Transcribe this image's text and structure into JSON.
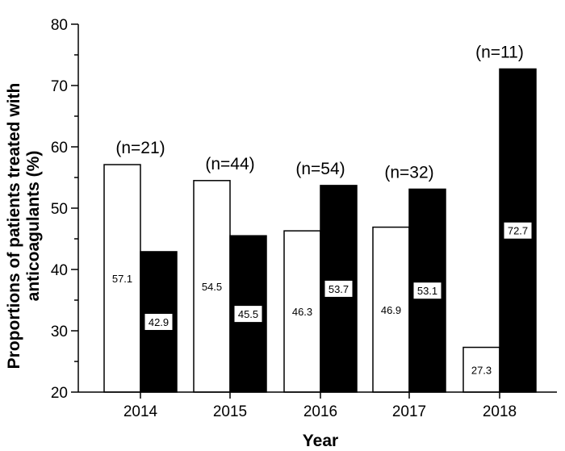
{
  "chart_data": {
    "type": "bar",
    "title": "",
    "xlabel": "Year",
    "ylabel": "Proportions of patients treated with anticoagulants (%)",
    "ylabel_lines": [
      "Proportions of patients treated with",
      "anticoagulants (%)"
    ],
    "ylim": [
      20,
      80
    ],
    "yticks": [
      "20",
      "30",
      "40",
      "50",
      "60",
      "70",
      "80"
    ],
    "categories": [
      "2014",
      "2015",
      "2016",
      "2017",
      "2018"
    ],
    "series": [
      {
        "name": "white",
        "color": "#ffffff",
        "values": [
          57.1,
          54.5,
          46.3,
          46.9,
          27.3
        ]
      },
      {
        "name": "black",
        "color": "#000000",
        "values": [
          42.9,
          45.5,
          53.7,
          53.1,
          72.7
        ]
      }
    ],
    "value_labels": [
      [
        "57.1",
        "54.5",
        "46.3",
        "46.9",
        "27.3"
      ],
      [
        "42.9",
        "45.5",
        "53.7",
        "53.1",
        "72.7"
      ]
    ],
    "n_labels": [
      "(n=21)",
      "(n=44)",
      "(n=54)",
      "(n=32)",
      "(n=11)"
    ],
    "grid": false,
    "legend": "none"
  }
}
